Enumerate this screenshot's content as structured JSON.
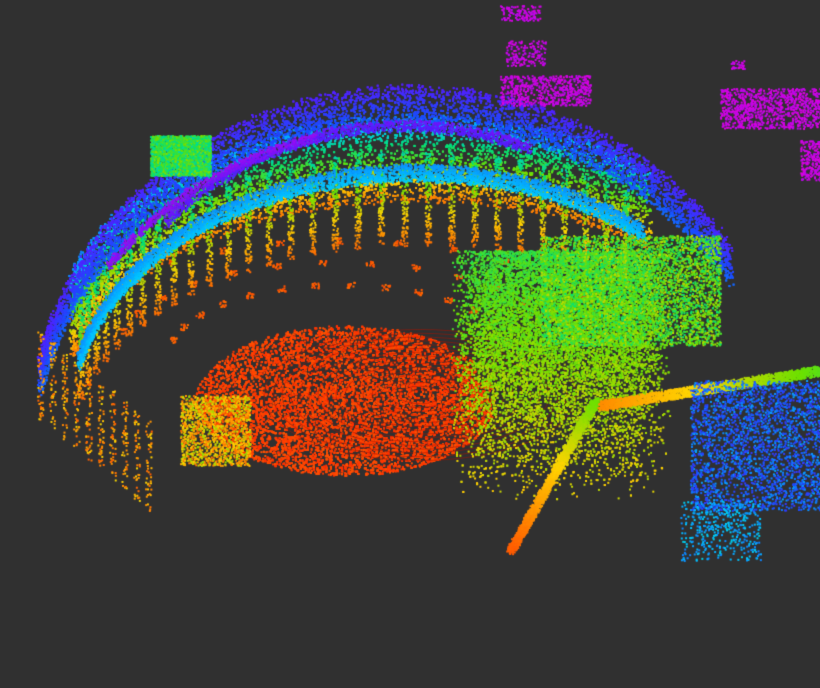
{
  "viewer": {
    "background_color": "#303030",
    "grid_color": "#a0a0a0",
    "colormap": "height-rainbow",
    "colormap_stops": [
      "#ff2200",
      "#ff7a00",
      "#ffd400",
      "#6fe000",
      "#00e07a",
      "#00c8ff",
      "#1a4dff",
      "#5a1aff",
      "#e000e0"
    ]
  }
}
